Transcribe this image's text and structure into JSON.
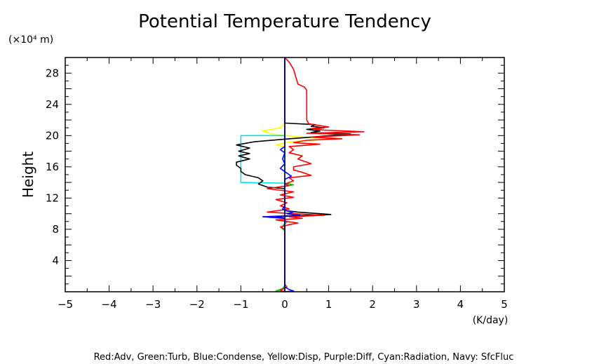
{
  "chart_data": {
    "type": "line",
    "title": "Potential Temperature Tendency",
    "xlabel": "(K/day)",
    "ylabel": "Height",
    "yunit": "(×10⁴ m)",
    "xlim": [
      -5,
      5
    ],
    "ylim": [
      0,
      30
    ],
    "xticks": [
      -5,
      -4,
      -3,
      -2,
      -1,
      0,
      1,
      2,
      3,
      4,
      5
    ],
    "yticks": [
      4,
      8,
      12,
      16,
      20,
      24,
      28
    ],
    "grid": false,
    "legend_text": "Red:Adv, Green:Turb, Blue:Condense, Yellow:Disp, Purple:Diff, Cyan:Radiation, Navy: SfcFluc",
    "series": [
      {
        "name": "Yellow:Disp",
        "color": "#ffff00",
        "points": [
          [
            0,
            0
          ],
          [
            0,
            18.6
          ],
          [
            -0.2,
            18.8
          ],
          [
            0.1,
            19.2
          ],
          [
            0.6,
            19.4
          ],
          [
            1.3,
            19.6
          ],
          [
            0.4,
            19.8
          ],
          [
            -0.3,
            20.2
          ],
          [
            -0.5,
            20.6
          ],
          [
            -0.1,
            21
          ],
          [
            0,
            21.6
          ],
          [
            0,
            30
          ]
        ]
      },
      {
        "name": "Cyan:Radiation",
        "color": "#00e5e5",
        "points": [
          [
            0,
            13.9
          ],
          [
            -1,
            14
          ],
          [
            -1,
            20
          ],
          [
            0,
            20
          ]
        ]
      },
      {
        "name": "Green:Turb",
        "color": "#00c000",
        "points": [
          [
            0,
            0
          ],
          [
            -0.2,
            0.1
          ],
          [
            -0.05,
            0.4
          ],
          [
            0,
            0.8
          ],
          [
            0,
            7.8
          ],
          [
            -0.08,
            8.2
          ],
          [
            -0.02,
            8.6
          ],
          [
            0.05,
            8.9
          ],
          [
            0,
            9.2
          ],
          [
            0,
            13.5
          ],
          [
            0.2,
            13.7
          ],
          [
            0,
            13.9
          ],
          [
            0,
            30
          ]
        ]
      },
      {
        "name": "Black",
        "color": "#000000",
        "points": [
          [
            0,
            0
          ],
          [
            0,
            9.4
          ],
          [
            -0.2,
            9.6
          ],
          [
            0.2,
            9.7
          ],
          [
            1.05,
            9.9
          ],
          [
            0.3,
            10.2
          ],
          [
            0,
            10.4
          ],
          [
            0,
            13.2
          ],
          [
            -0.4,
            13.4
          ],
          [
            -0.6,
            13.8
          ],
          [
            -0.5,
            14.2
          ],
          [
            -0.6,
            14.6
          ],
          [
            -0.9,
            15
          ],
          [
            -1.0,
            15.4
          ],
          [
            -1.0,
            15.8
          ],
          [
            -1.1,
            16.2
          ],
          [
            -1.1,
            16.6
          ],
          [
            -0.8,
            17
          ],
          [
            -1.05,
            17.4
          ],
          [
            -0.8,
            17.7
          ],
          [
            -1.05,
            18
          ],
          [
            -0.8,
            18.4
          ],
          [
            -1.1,
            18.8
          ],
          [
            -0.7,
            19.2
          ],
          [
            -0.1,
            19.5
          ],
          [
            1.5,
            20.2
          ],
          [
            0.6,
            20.4
          ],
          [
            0.8,
            20.6
          ],
          [
            0.5,
            20.8
          ],
          [
            0.9,
            21
          ],
          [
            0.6,
            21.2
          ],
          [
            0.7,
            21.4
          ],
          [
            0,
            21.6
          ],
          [
            0,
            30
          ]
        ]
      },
      {
        "name": "Red:Adv",
        "color": "#ff0000",
        "points": [
          [
            0,
            0
          ],
          [
            -0.1,
            0.2
          ],
          [
            0.05,
            0.6
          ],
          [
            0,
            1
          ],
          [
            0,
            8
          ],
          [
            -0.1,
            8.3
          ],
          [
            0.1,
            8.6
          ],
          [
            0.3,
            8.8
          ],
          [
            -0.2,
            9.2
          ],
          [
            0.4,
            9.4
          ],
          [
            0.1,
            9.6
          ],
          [
            0.9,
            9.8
          ],
          [
            0.2,
            10
          ],
          [
            -0.4,
            10.2
          ],
          [
            0.1,
            10.6
          ],
          [
            -0.1,
            11
          ],
          [
            0.05,
            11.4
          ],
          [
            -0.2,
            11.8
          ],
          [
            0.2,
            12.1
          ],
          [
            -0.1,
            12.4
          ],
          [
            0.2,
            12.8
          ],
          [
            -0.4,
            13.2
          ],
          [
            0.1,
            13.6
          ],
          [
            0,
            13.8
          ],
          [
            0.2,
            14.2
          ],
          [
            0.1,
            14.6
          ],
          [
            0.6,
            14.9
          ],
          [
            0.4,
            15.3
          ],
          [
            0.2,
            15.6
          ],
          [
            0.2,
            16
          ],
          [
            0.6,
            16.4
          ],
          [
            0.4,
            16.8
          ],
          [
            0.3,
            17
          ],
          [
            0.4,
            17.4
          ],
          [
            0.1,
            17.8
          ],
          [
            0.2,
            18.2
          ],
          [
            0.1,
            18.6
          ],
          [
            0.8,
            18.9
          ],
          [
            0.2,
            19.1
          ],
          [
            0.5,
            19.4
          ],
          [
            1.3,
            19.6
          ],
          [
            0.6,
            19.8
          ],
          [
            1.7,
            20.1
          ],
          [
            0.5,
            20.3
          ],
          [
            1.8,
            20.5
          ],
          [
            0.9,
            20.7
          ],
          [
            0.6,
            20.9
          ],
          [
            1.0,
            21.1
          ],
          [
            0.55,
            21.5
          ],
          [
            0.5,
            22
          ],
          [
            0.5,
            25.8
          ],
          [
            0.45,
            26.2
          ],
          [
            0.3,
            26.6
          ],
          [
            0.25,
            27.5
          ],
          [
            0.2,
            28.5
          ],
          [
            0.1,
            29.4
          ],
          [
            0,
            30
          ]
        ]
      },
      {
        "name": "Blue:Condense",
        "color": "#0000ff",
        "points": [
          [
            0,
            0
          ],
          [
            0.2,
            0.1
          ],
          [
            0.1,
            0.3
          ],
          [
            0,
            0.6
          ],
          [
            0,
            9.4
          ],
          [
            -0.5,
            9.6
          ],
          [
            0.35,
            9.8
          ],
          [
            0.05,
            10
          ],
          [
            0.2,
            10.2
          ],
          [
            0,
            10.4
          ],
          [
            -0.05,
            10.6
          ],
          [
            0,
            11
          ],
          [
            0,
            14.4
          ],
          [
            0.15,
            14.8
          ],
          [
            0.05,
            15.2
          ],
          [
            -0.1,
            15.8
          ],
          [
            0,
            16.4
          ],
          [
            -0.05,
            17
          ],
          [
            0,
            17.8
          ],
          [
            -0.1,
            18.2
          ],
          [
            0,
            18.6
          ],
          [
            0,
            30
          ]
        ]
      },
      {
        "name": "Navy: SfcFluc",
        "color": "#000080",
        "points": [
          [
            0,
            0
          ],
          [
            0,
            30
          ]
        ]
      }
    ]
  }
}
